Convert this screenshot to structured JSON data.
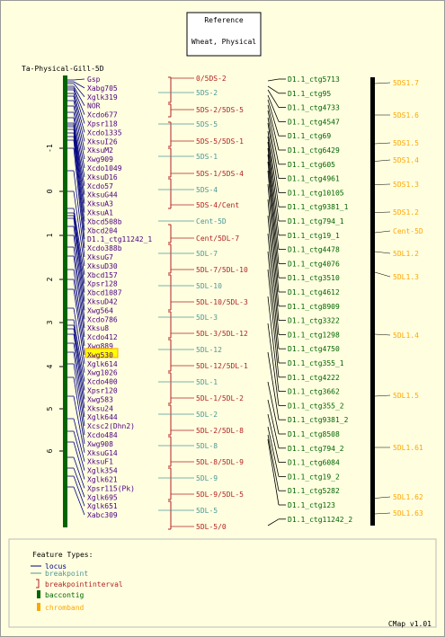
{
  "reference": {
    "label": "Reference",
    "map_type": "Wheat, Physical"
  },
  "map_title": "Ta-Physical-Gill-5D",
  "axis_ticks": [
    "-1",
    "0",
    "1",
    "2",
    "3",
    "4",
    "5",
    "6"
  ],
  "loci": [
    "Gsp",
    "Xabg705",
    "Xglk319",
    "NOR",
    "Xcdo677",
    "Xpsr118",
    "Xcdo1335",
    "XksuI26",
    "XksuM2",
    "Xwg909",
    "Xcdo1049",
    "XksuD16",
    "Xcdo57",
    "XksuG44",
    "XksuA3",
    "XksuA1",
    "Xbcd508b",
    "Xbcd204",
    "D1.1_ctg11242_1",
    "Xcdo388b",
    "XksuG7",
    "XksuD30",
    "Xbcd157",
    "Xpsr128",
    "Xbcd1087",
    "XksuD42",
    "Xwg564",
    "Xcdo786",
    "Xksu8",
    "Xcdo412",
    "Xwg889",
    "Xwg530",
    "Xglk614",
    "Xwg1026",
    "Xcdo400",
    "Xpsr120",
    "Xwg583",
    "Xksu24",
    "Xglk644",
    "Xcsc2(Dhn2)",
    "Xcdo484",
    "Xwg908",
    "XksuG14",
    "XksuF1",
    "Xglk354",
    "Xglk621",
    "Xpsr115(Pk)",
    "Xglk695",
    "Xglk651",
    "Xabc309"
  ],
  "highlighted_locus": "Xwg530",
  "breakpoint_intervals": [
    "0/5DS-2",
    "5DS-2/5DS-5",
    "5DS-5/5DS-1",
    "5DS-1/5DS-4",
    "5DS-4/Cent",
    "Cent/5DL-7",
    "5DL-7/5DL-10",
    "5DL-10/5DL-3",
    "5DL-3/5DL-12",
    "5DL-12/5DL-1",
    "5DL-1/5DL-2",
    "5DL-2/5DL-8",
    "5DL-8/5DL-9",
    "5DL-9/5DL-5",
    "5DL-5/0"
  ],
  "breakpoints": [
    "5DS-2",
    "5DS-5",
    "5DS-1",
    "5DS-4",
    "Cent-5D",
    "5DL-7",
    "5DL-10",
    "5DL-3",
    "5DL-12",
    "5DL-1",
    "5DL-2",
    "5DL-8",
    "5DL-9",
    "5DL-5"
  ],
  "contigs": [
    "D1.1_ctg5713",
    "D1.1_ctg95",
    "D1.1_ctg4733",
    "D1.1_ctg4547",
    "D1.1_ctg69",
    "D1.1_ctg6429",
    "D1.1_ctg605",
    "D1.1_ctg4961",
    "D1.1_ctg10105",
    "D1.1_ctg9381_1",
    "D1.1_ctg794_1",
    "D1.1_ctg19_1",
    "D1.1_ctg4478",
    "D1.1_ctg4076",
    "D1.1_ctg3510",
    "D1.1_ctg4612",
    "D1.1_ctg8909",
    "D1.1_ctg3322",
    "D1.1_ctg1298",
    "D1.1_ctg4750",
    "D1.1_ctg355_1",
    "D1.1_ctg4222",
    "D1.1_ctg3662",
    "D1.1_ctg355_2",
    "D1.1_ctg9381_2",
    "D1.1_ctg8508",
    "D1.1_ctg794_2",
    "D1.1_ctg6084",
    "D1.1_ctg19_2",
    "D1.1_ctg5282",
    "D1.1_ctg123",
    "D1.1_ctg11242_2"
  ],
  "chrombands": [
    "5DS1.7",
    "5DS1.6",
    "5DS1.5",
    "5DS1.4",
    "5DS1.3",
    "5DS1.2",
    "Cent-5D",
    "5DL1.2",
    "5DL1.3",
    "5DL1.4",
    "5DL1.5",
    "5DL1.61",
    "5DL1.62",
    "5DL1.63"
  ],
  "legend": {
    "title": "Feature Types:",
    "items": [
      {
        "label": "locus",
        "color": "#000080"
      },
      {
        "label": "breakpoint",
        "color": "#4f9696"
      },
      {
        "label": "breakpointinterval",
        "color": "#b22222"
      },
      {
        "label": "baccontig",
        "color": "#006400"
      },
      {
        "label": "chromband",
        "color": "#ffa500"
      }
    ]
  },
  "footer": "CMap v1.01",
  "colors": {
    "background": "#ffffe0",
    "locus": "#4b0082",
    "locus_line": "#000080",
    "breakpoint": "#4f9696",
    "interval": "#b22222",
    "contig": "#006400",
    "band": "#ffa500",
    "highlight": "#ffff00"
  }
}
